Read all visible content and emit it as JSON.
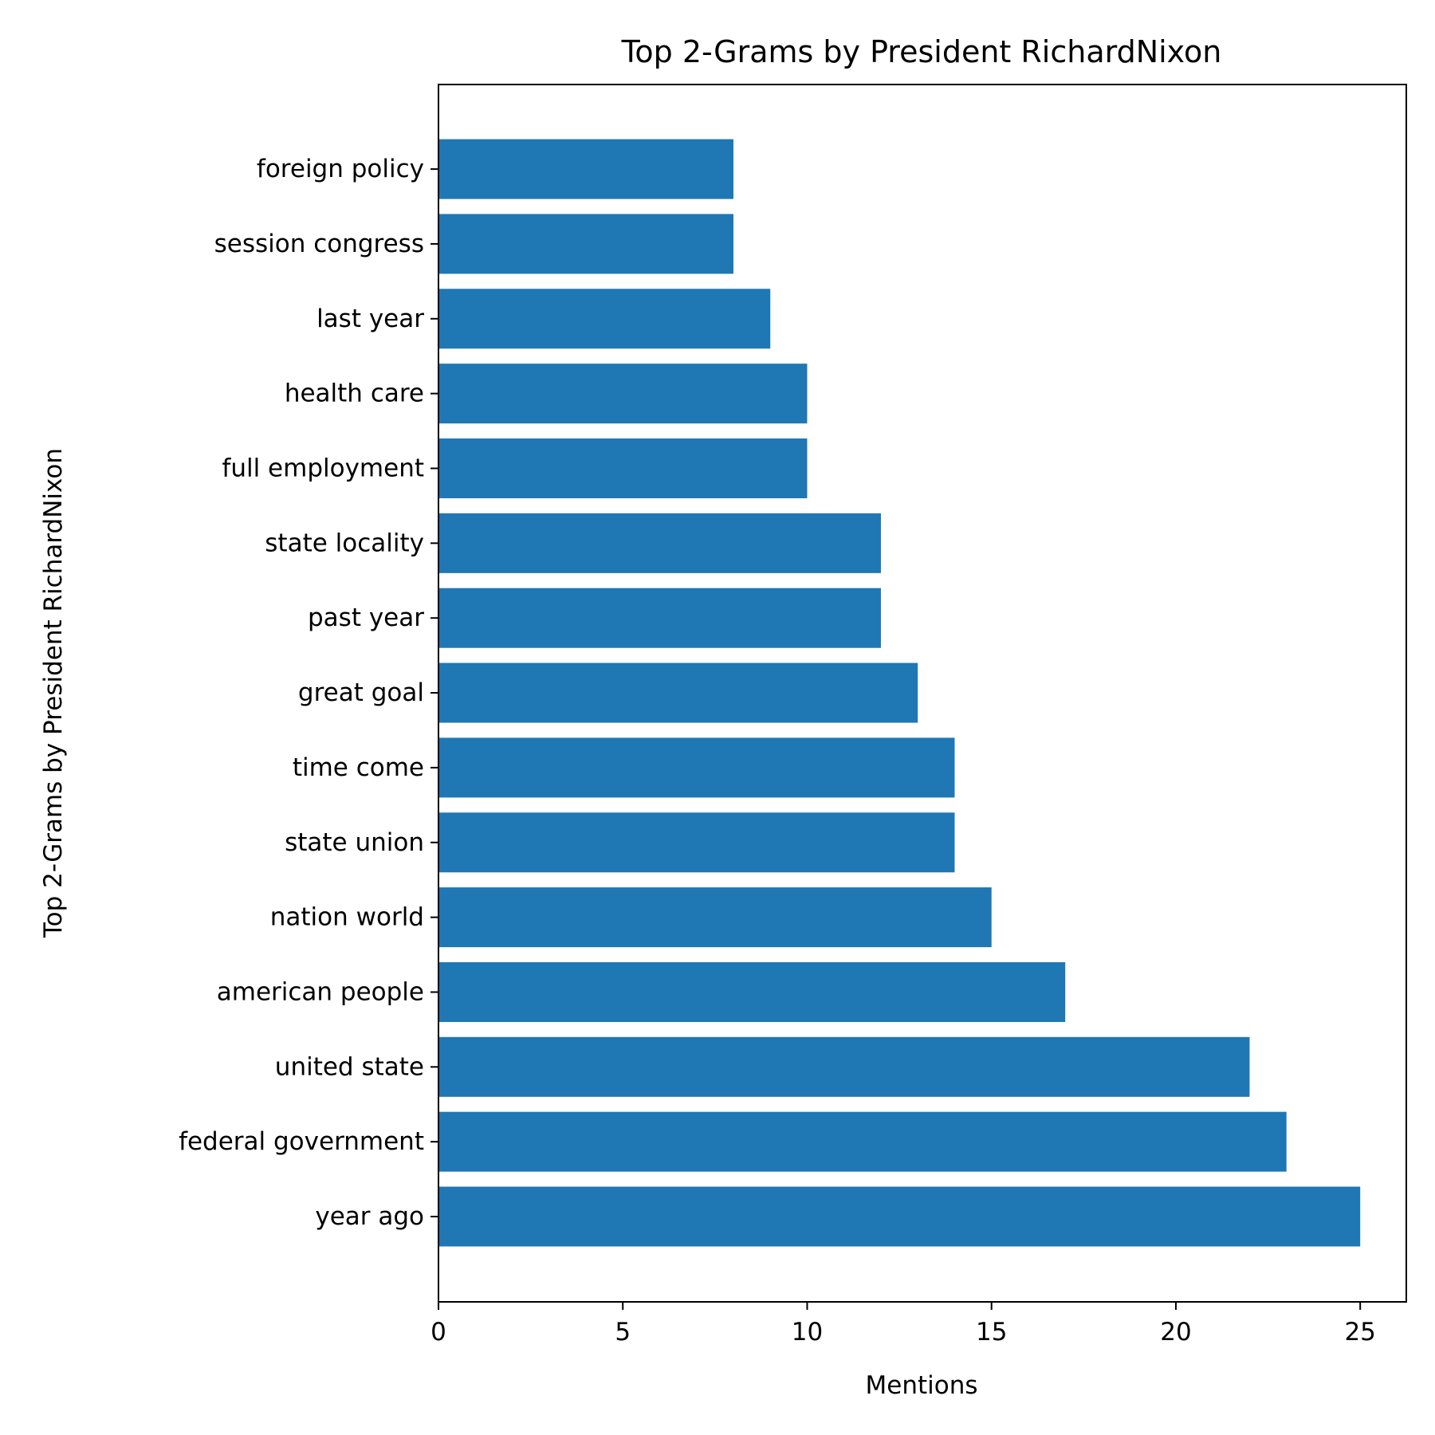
{
  "chart_data": {
    "type": "bar",
    "orientation": "horizontal",
    "title": "Top 2-Grams by President RichardNixon",
    "xlabel": "Mentions",
    "ylabel": "Top 2-Grams by President RichardNixon",
    "categories": [
      "year ago",
      "federal government",
      "united state",
      "american people",
      "nation world",
      "state union",
      "time come",
      "great goal",
      "past year",
      "state locality",
      "full employment",
      "health care",
      "last year",
      "session congress",
      "foreign policy"
    ],
    "values": [
      25,
      23,
      22,
      17,
      15,
      14,
      14,
      13,
      12,
      12,
      10,
      10,
      9,
      8,
      8
    ],
    "xlim": [
      0,
      26.25
    ],
    "xticks": [
      "0",
      "5",
      "10",
      "15",
      "20",
      "25"
    ],
    "grid": false,
    "bar_color": "#1f77b4"
  }
}
